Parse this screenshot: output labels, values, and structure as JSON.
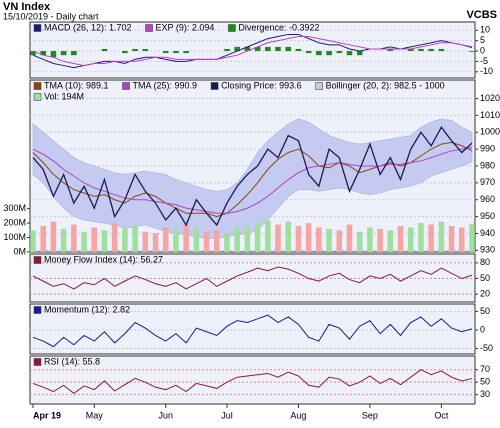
{
  "header": {
    "title": "VN Index",
    "subtitle": "15/10/2019 - Daily chart",
    "brand": "VCBS"
  },
  "chart_data": [
    {
      "type": "line",
      "ylim": [
        -13,
        14
      ],
      "yticks": [
        10,
        5,
        0,
        -5,
        -10
      ],
      "grid": true,
      "grid_color": "#c8cce0",
      "series": [
        {
          "name": "MACD (26, 12): 1.702",
          "style": "line",
          "color": "#1a1a80",
          "values": [
            -2,
            -4,
            -6,
            -7,
            -8,
            -7,
            -6,
            -5,
            -5,
            -6,
            -4,
            -3,
            -3,
            -4,
            -5,
            -5,
            -4,
            -4,
            -4,
            -2,
            0,
            2,
            4,
            6,
            7,
            8,
            8,
            6,
            4,
            3,
            3,
            1,
            0,
            1,
            1,
            2,
            1,
            2,
            3,
            4,
            5,
            4,
            3,
            1.702
          ]
        },
        {
          "name": "EXP (9): 2.094",
          "style": "line",
          "color": "#c040c0",
          "values": [
            0,
            -2,
            -3,
            -5,
            -6,
            -7,
            -6,
            -6,
            -5,
            -5,
            -5,
            -4,
            -3,
            -3,
            -4,
            -4,
            -4,
            -4,
            -4,
            -3,
            -2,
            0,
            2,
            4,
            5,
            6,
            7,
            7,
            6,
            5,
            4,
            3,
            2,
            1,
            1,
            1,
            1,
            1,
            2,
            3,
            4,
            4,
            3,
            2.094
          ]
        },
        {
          "name": "Divergence: -0.3922",
          "style": "bar",
          "color": "#1c8a1c",
          "values": [
            -2,
            -2,
            -3,
            -2,
            -2,
            0,
            0,
            1,
            0,
            -1,
            1,
            1,
            0,
            -1,
            -1,
            -1,
            0,
            0,
            0,
            1,
            2,
            2,
            2,
            2,
            2,
            2,
            1,
            -1,
            -2,
            -2,
            -1,
            -2,
            -2,
            0,
            0,
            1,
            0,
            1,
            1,
            1,
            1,
            0,
            0,
            -0.3922
          ]
        }
      ]
    },
    {
      "type": "line",
      "ylim": [
        929,
        1031
      ],
      "yticks": [
        930,
        940,
        950,
        960,
        970,
        980,
        990,
        1000,
        1010,
        1020
      ],
      "grid": true,
      "grid_color": "#c8cce0",
      "y2lim": [
        0,
        1190
      ],
      "y2ticks": [
        {
          "value": 0,
          "label": "0M"
        },
        {
          "value": 100,
          "label": "100M"
        },
        {
          "value": 200,
          "label": "200M"
        },
        {
          "value": 300,
          "label": "300M"
        }
      ],
      "series": [
        {
          "name": "TMA (10): 989.1",
          "style": "line",
          "color": "#8b4513",
          "values": [
            988,
            982,
            975,
            970,
            966,
            964,
            962,
            963,
            960,
            958,
            962,
            964,
            962,
            958,
            955,
            952,
            952,
            952,
            950,
            952,
            957,
            963,
            970,
            978,
            984,
            988,
            990,
            986,
            980,
            979,
            982,
            980,
            976,
            978,
            980,
            982,
            980,
            982,
            986,
            990,
            993,
            994,
            992,
            989.1
          ]
        },
        {
          "name": "TMA (25): 990.9",
          "style": "line",
          "color": "#b040c8",
          "values": [
            990,
            987,
            983,
            978,
            974,
            970,
            967,
            965,
            963,
            961,
            960,
            960,
            959,
            958,
            957,
            955,
            954,
            953,
            952,
            952,
            953,
            955,
            958,
            962,
            967,
            972,
            976,
            979,
            980,
            981,
            982,
            981,
            980,
            980,
            980,
            981,
            981,
            982,
            983,
            985,
            987,
            989,
            990,
            990.9
          ]
        },
        {
          "name": "Closing Price: 993.6",
          "style": "price",
          "color": "#1a1a50",
          "values": [
            985,
            978,
            962,
            975,
            958,
            968,
            955,
            972,
            950,
            960,
            975,
            965,
            958,
            948,
            955,
            945,
            960,
            952,
            945,
            958,
            968,
            975,
            980,
            990,
            985,
            998,
            995,
            975,
            968,
            990,
            985,
            965,
            978,
            993,
            975,
            985,
            972,
            990,
            1000,
            992,
            1003,
            995,
            988,
            993.6
          ]
        },
        {
          "name": "Bollinger (20, 2): 982.5 - 1000",
          "style": "band",
          "color": "#c4caf0",
          "upper": [
            1005,
            1000,
            995,
            990,
            985,
            982,
            980,
            978,
            976,
            975,
            976,
            977,
            976,
            975,
            972,
            970,
            968,
            966,
            965,
            966,
            970,
            978,
            988,
            995,
            1000,
            1005,
            1008,
            1006,
            1002,
            998,
            996,
            994,
            993,
            994,
            995,
            996,
            997,
            998,
            1003,
            1006,
            1008,
            1007,
            1003,
            1000
          ],
          "lower": [
            975,
            970,
            962,
            955,
            950,
            948,
            947,
            946,
            945,
            943,
            944,
            945,
            943,
            941,
            940,
            939,
            938,
            937,
            937,
            938,
            939,
            940,
            942,
            948,
            955,
            962,
            966,
            966,
            965,
            966,
            967,
            966,
            964,
            963,
            964,
            966,
            967,
            968,
            970,
            974,
            976,
            978,
            980,
            982.5
          ]
        },
        {
          "name": "Vol: 194M",
          "style": "bar",
          "axis": "y2",
          "color": "#9fe09f",
          "down_color": "#f4a6a6",
          "values": [
            150,
            180,
            210,
            160,
            190,
            140,
            170,
            150,
            200,
            160,
            180,
            140,
            130,
            170,
            150,
            190,
            160,
            140,
            150,
            130,
            170,
            180,
            200,
            220,
            190,
            210,
            180,
            200,
            170,
            160,
            150,
            190,
            140,
            170,
            160,
            150,
            180,
            170,
            200,
            190,
            210,
            180,
            170,
            194
          ]
        }
      ]
    },
    {
      "type": "line",
      "ylim": [
        5,
        97
      ],
      "yticks": [
        80,
        50,
        20
      ],
      "grid": true,
      "grid_color": "#d89090",
      "series": [
        {
          "name": "Money Flow Index (14): 56.27",
          "style": "line",
          "color": "#8b1a3a",
          "values": [
            55,
            45,
            35,
            40,
            30,
            42,
            38,
            50,
            35,
            45,
            55,
            48,
            40,
            35,
            42,
            30,
            40,
            50,
            35,
            45,
            55,
            62,
            70,
            65,
            72,
            68,
            60,
            50,
            45,
            55,
            60,
            48,
            42,
            55,
            50,
            58,
            45,
            55,
            65,
            58,
            70,
            60,
            50,
            56.27
          ]
        }
      ]
    },
    {
      "type": "line",
      "ylim": [
        -65,
        70
      ],
      "yticks": [
        50,
        0,
        -50
      ],
      "grid": true,
      "grid_color": "#c8cce0",
      "series": [
        {
          "name": "Momentum (12): 2.82",
          "style": "line",
          "color": "#1a1a90",
          "values": [
            -20,
            -30,
            -45,
            -20,
            -40,
            -15,
            -30,
            -5,
            -35,
            -10,
            20,
            5,
            -15,
            -30,
            -10,
            -35,
            5,
            -5,
            -15,
            10,
            25,
            20,
            30,
            40,
            20,
            35,
            15,
            -20,
            -30,
            15,
            5,
            -25,
            10,
            25,
            -10,
            15,
            -15,
            20,
            35,
            10,
            30,
            5,
            -5,
            2.82
          ]
        }
      ]
    },
    {
      "type": "line",
      "ylim": [
        15,
        92
      ],
      "yticks": [
        70,
        50,
        30
      ],
      "grid": true,
      "grid_color": "#d89090",
      "categories": [
        "Apr 19",
        null,
        null,
        null,
        null,
        null,
        "May",
        null,
        null,
        null,
        null,
        null,
        null,
        "Jun",
        null,
        null,
        null,
        null,
        null,
        "Jul",
        null,
        null,
        null,
        null,
        null,
        null,
        "Aug",
        null,
        null,
        null,
        null,
        null,
        null,
        "Sep",
        null,
        null,
        null,
        null,
        null,
        null,
        "Oct",
        null,
        null,
        null
      ],
      "series": [
        {
          "name": "RSI (14): 55.8",
          "style": "line",
          "color": "#8b1a3a",
          "values": [
            48,
            42,
            35,
            45,
            32,
            44,
            38,
            52,
            36,
            46,
            56,
            50,
            42,
            38,
            45,
            35,
            48,
            44,
            40,
            50,
            58,
            60,
            62,
            64,
            58,
            66,
            60,
            45,
            42,
            58,
            55,
            44,
            50,
            60,
            48,
            56,
            46,
            58,
            70,
            62,
            68,
            58,
            52,
            55.8
          ]
        }
      ]
    }
  ]
}
